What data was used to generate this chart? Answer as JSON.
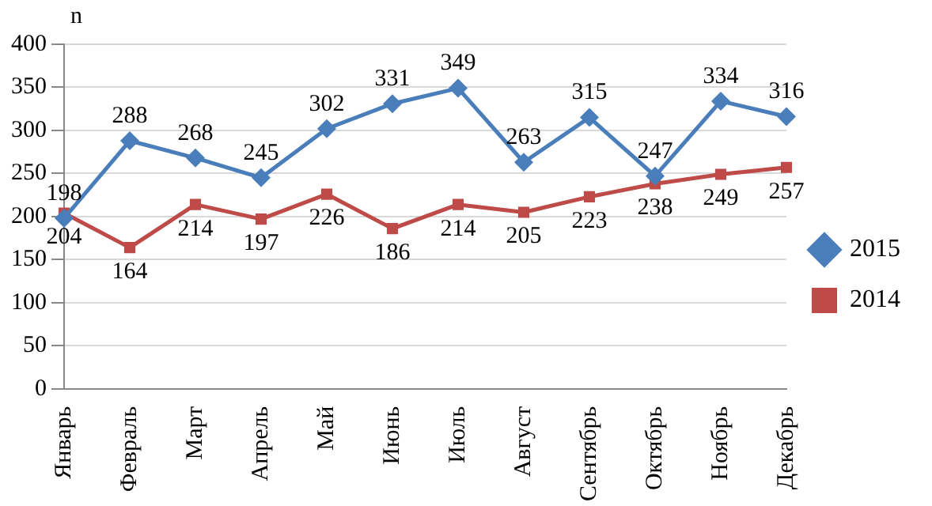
{
  "chart_data": {
    "type": "line",
    "ylabel": "n",
    "categories": [
      "Январь",
      "Февраль",
      "Март",
      "Апрель",
      "Май",
      "Июнь",
      "Июль",
      "Август",
      "Сентябрь",
      "Октябрь",
      "Ноябрь",
      "Декабрь"
    ],
    "series": [
      {
        "name": "2015",
        "color": "#4a7ebb",
        "marker": "diamond",
        "values": [
          198,
          288,
          268,
          245,
          302,
          331,
          349,
          263,
          315,
          247,
          334,
          316
        ]
      },
      {
        "name": "2014",
        "color": "#be4b48",
        "marker": "square",
        "values": [
          204,
          164,
          214,
          197,
          226,
          186,
          214,
          205,
          223,
          238,
          249,
          257
        ]
      }
    ],
    "ylim": [
      0,
      400
    ],
    "yticks": [
      0,
      50,
      100,
      150,
      200,
      250,
      300,
      350,
      400
    ],
    "grid": "y",
    "legend": "right",
    "data_labels": true,
    "line_style": "solid"
  }
}
